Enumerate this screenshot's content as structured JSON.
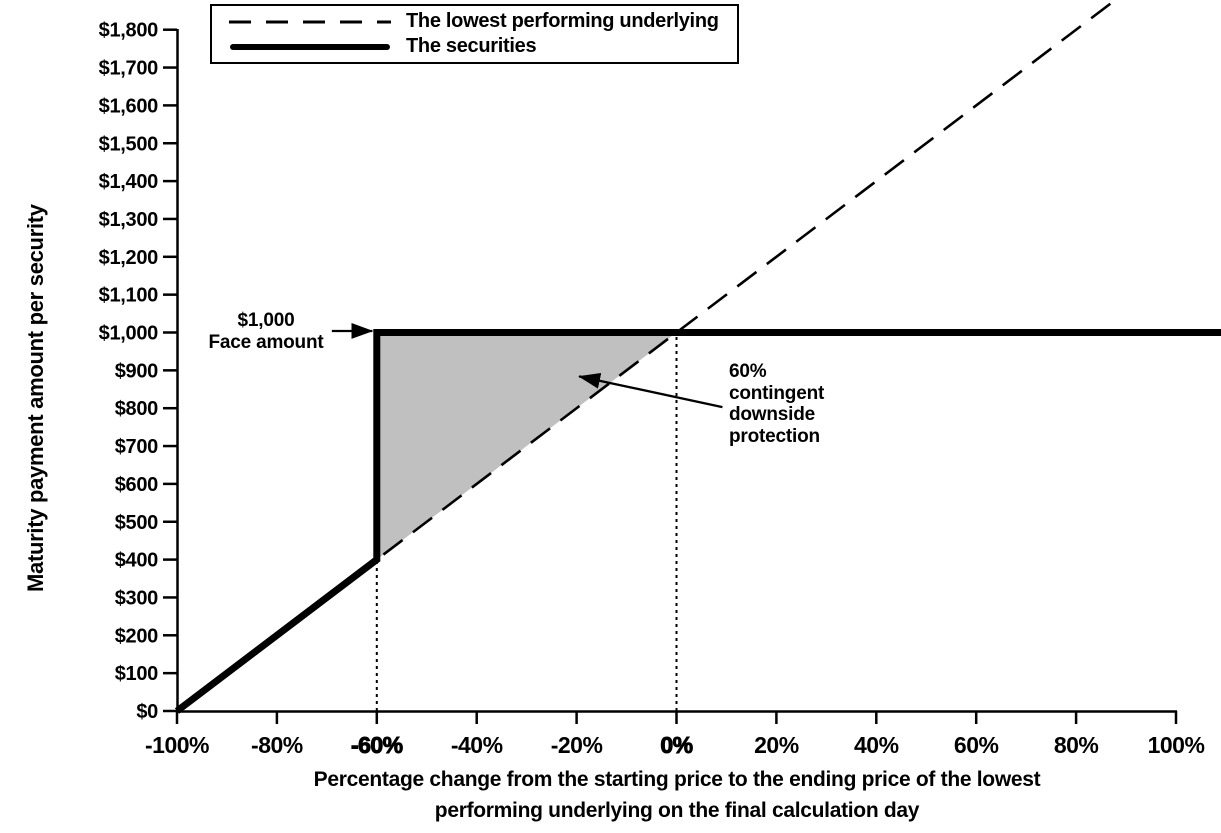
{
  "chart_data": {
    "type": "line",
    "title": "",
    "xlabel": "Percentage change from the starting price to the ending price of the lowest performing underlying on the final calculation day",
    "xlabel_lines": [
      "Percentage change from the starting price to the ending price of the lowest",
      "performing underlying on the final calculation day"
    ],
    "ylabel": "Maturity payment amount per security",
    "xlim": [
      -100,
      100
    ],
    "ylim": [
      0,
      1800
    ],
    "grid": false,
    "legend_position": "top-left-inside",
    "x_ticks": [
      {
        "value": -100,
        "label": "-100%",
        "emphasized": false
      },
      {
        "value": -80,
        "label": "-80%",
        "emphasized": false
      },
      {
        "value": -60,
        "label": "-60%",
        "emphasized": true
      },
      {
        "value": -40,
        "label": "-40%",
        "emphasized": false
      },
      {
        "value": -20,
        "label": "-20%",
        "emphasized": false
      },
      {
        "value": 0,
        "label": "0%",
        "emphasized": true
      },
      {
        "value": 20,
        "label": "20%",
        "emphasized": false
      },
      {
        "value": 40,
        "label": "40%",
        "emphasized": false
      },
      {
        "value": 60,
        "label": "60%",
        "emphasized": false
      },
      {
        "value": 80,
        "label": "80%",
        "emphasized": false
      },
      {
        "value": 100,
        "label": "100%",
        "emphasized": false
      }
    ],
    "y_ticks": [
      {
        "value": 0,
        "label": "$0"
      },
      {
        "value": 100,
        "label": "$100"
      },
      {
        "value": 200,
        "label": "$200"
      },
      {
        "value": 300,
        "label": "$300"
      },
      {
        "value": 400,
        "label": "$400"
      },
      {
        "value": 500,
        "label": "$500"
      },
      {
        "value": 600,
        "label": "$600"
      },
      {
        "value": 700,
        "label": "$700"
      },
      {
        "value": 800,
        "label": "$800"
      },
      {
        "value": 900,
        "label": "$900"
      },
      {
        "value": 1000,
        "label": "$1,000"
      },
      {
        "value": 1100,
        "label": "$1,100"
      },
      {
        "value": 1200,
        "label": "$1,200"
      },
      {
        "value": 1300,
        "label": "$1,300"
      },
      {
        "value": 1400,
        "label": "$1,400"
      },
      {
        "value": 1500,
        "label": "$1,500"
      },
      {
        "value": 1600,
        "label": "$1,600"
      },
      {
        "value": 1700,
        "label": "$1,700"
      },
      {
        "value": 1800,
        "label": "$1,800"
      }
    ],
    "series": [
      {
        "name": "The lowest performing underlying",
        "style": "dashed",
        "color": "#000000",
        "points": [
          [
            -100,
            0
          ],
          [
            100,
            2000
          ]
        ]
      },
      {
        "name": "The securities",
        "style": "solid-thick",
        "color": "#000000",
        "points": [
          [
            -100,
            0
          ],
          [
            -60,
            400
          ],
          [
            -60,
            1000
          ],
          [
            100,
            1000
          ]
        ]
      }
    ],
    "shaded_region": {
      "name": "contingent downside protection area",
      "color": "#c0c0c0",
      "points": [
        [
          -60,
          400
        ],
        [
          -60,
          1000
        ],
        [
          0,
          1000
        ]
      ]
    },
    "reference_lines": [
      {
        "axis": "x",
        "at": -60,
        "from_value": 0,
        "to_value": 400,
        "style": "dotted"
      },
      {
        "axis": "x",
        "at": 0,
        "from_value": 0,
        "to_value": 1000,
        "style": "dotted"
      }
    ],
    "legend_items": [
      {
        "label": "The lowest performing underlying",
        "line_style": "dashed"
      },
      {
        "label": "The securities",
        "line_style": "solid-thick"
      }
    ],
    "annotations": [
      {
        "id": "face-amount",
        "lines": [
          "$1,000",
          "Face amount"
        ],
        "arrow": {
          "from": [
            -69,
            1004
          ],
          "to": [
            -60.9,
            1004
          ]
        }
      },
      {
        "id": "downside-protection",
        "lines": [
          "60%",
          "contingent",
          "downside",
          "protection"
        ],
        "arrow": {
          "from": [
            9.2,
            803
          ],
          "to": [
            -19.5,
            884
          ]
        }
      }
    ]
  }
}
